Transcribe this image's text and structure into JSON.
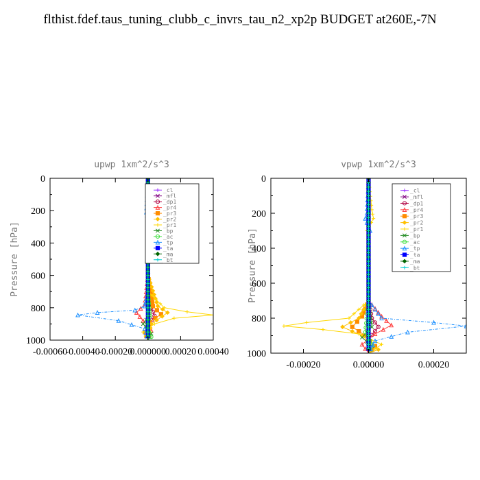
{
  "title": "flthist.fdef.taus_tuning_clubb_c_invrs_tau_n2_xp2p  BUDGET at260E,-7N",
  "chart_data": [
    {
      "type": "line",
      "title": "upwp   1xm^2/s^3",
      "ylabel": "Pressure [hPa]",
      "xlim": [
        -0.0006,
        0.0004
      ],
      "ylim": [
        1000,
        0
      ],
      "xticks": [
        -0.0006,
        -0.0004,
        -0.0002,
        0.0,
        0.0002,
        0.0004
      ],
      "xtick_labels": [
        "-0.00060",
        "-0.00040",
        "-0.00020",
        "0.000000",
        "0.00020",
        "0.00040"
      ],
      "yticks": [
        0,
        200,
        400,
        600,
        800,
        1000
      ],
      "ytick_labels": [
        "0",
        "200",
        "400",
        "600",
        "800",
        "1000"
      ],
      "legend": [
        "_cl",
        "_mfl",
        "_dp1",
        "_pr4",
        "_pr3",
        "_pr2",
        "_pr1",
        "_bp",
        "_ac",
        "_tp",
        "_ta",
        "_ma",
        "_bt"
      ],
      "legend_position": "top-right",
      "series": [
        {
          "name": "_cl",
          "color": "#9b30ff",
          "x": [
            0,
            0,
            0,
            0,
            0,
            0,
            0,
            0,
            0,
            0
          ],
          "y": [
            0,
            100,
            200,
            300,
            400,
            500,
            600,
            700,
            800,
            1000
          ]
        },
        {
          "name": "_mfl",
          "color": "#800080",
          "x": [
            0,
            0,
            0,
            0,
            0,
            0,
            0,
            0,
            0,
            0
          ],
          "y": [
            0,
            100,
            200,
            300,
            400,
            500,
            600,
            700,
            800,
            1000
          ]
        },
        {
          "name": "_dp1",
          "color": "#b00040",
          "x": [
            0,
            0,
            0,
            0,
            2e-05,
            4e-05,
            1e-05,
            0,
            0
          ],
          "y": [
            0,
            200,
            400,
            700,
            800,
            850,
            900,
            950,
            1000
          ]
        },
        {
          "name": "_pr4",
          "color": "#ff4040",
          "x": [
            0,
            0,
            0,
            -2e-05,
            -7e-05,
            -3e-05,
            2e-05,
            0
          ],
          "y": [
            0,
            300,
            600,
            780,
            830,
            880,
            940,
            1000
          ]
        },
        {
          "name": "_pr3",
          "color": "#ff8c00",
          "x": [
            0,
            0,
            0,
            3e-05,
            8e-05,
            1e-05,
            -2e-05,
            0
          ],
          "y": [
            0,
            300,
            600,
            790,
            840,
            890,
            950,
            1000
          ]
        },
        {
          "name": "_pr2",
          "color": "#ffc000",
          "x": [
            0,
            0,
            0,
            6e-05,
            0.00012,
            2e-05,
            0
          ],
          "y": [
            0,
            300,
            600,
            790,
            830,
            900,
            1000
          ]
        },
        {
          "name": "_pr1",
          "color": "#ffd700",
          "x": [
            0,
            -5e-06,
            0,
            0,
            0.0001,
            0.00024,
            0.0004,
            0.00016,
            4e-05,
            -3e-05,
            0
          ],
          "y": [
            0,
            220,
            300,
            700,
            800,
            825,
            845,
            865,
            900,
            950,
            1000
          ]
        },
        {
          "name": "_bp",
          "color": "#228b22",
          "x": [
            0,
            0,
            0,
            1e-05,
            -3e-05,
            2e-05,
            0
          ],
          "y": [
            0,
            300,
            700,
            850,
            900,
            960,
            1000
          ]
        },
        {
          "name": "_ac",
          "color": "#40e040",
          "x": [
            0,
            0,
            0,
            1e-05,
            -1e-05,
            2e-05,
            0
          ],
          "y": [
            0,
            300,
            700,
            850,
            920,
            980,
            1000
          ]
        },
        {
          "name": "_tp",
          "color": "#1e90ff",
          "x": [
            0,
            -1e-05,
            -5e-06,
            0,
            0,
            -2e-05,
            -8e-05,
            -0.00031,
            -0.00043,
            -0.00018,
            -2e-05,
            0
          ],
          "y": [
            0,
            210,
            230,
            300,
            700,
            790,
            815,
            830,
            845,
            880,
            930,
            1000
          ]
        },
        {
          "name": "_ta",
          "color": "#0000ff",
          "x": [
            0,
            0,
            0,
            0,
            0
          ],
          "y": [
            0,
            300,
            600,
            900,
            1000
          ]
        },
        {
          "name": "_ma",
          "color": "#006400",
          "x": [
            0,
            0,
            0,
            0,
            0
          ],
          "y": [
            0,
            300,
            600,
            900,
            1000
          ]
        },
        {
          "name": "_bt",
          "color": "#00ced1",
          "x": [
            0,
            0,
            0,
            0,
            0
          ],
          "y": [
            0,
            300,
            600,
            900,
            1000
          ]
        }
      ]
    },
    {
      "type": "line",
      "title": "vpwp   1xm^2/s^3",
      "ylabel": "Pressure [hPa]",
      "xlim": [
        -0.0003,
        0.0003
      ],
      "ylim": [
        1000,
        0
      ],
      "xticks": [
        -0.0002,
        0.0,
        0.0002
      ],
      "xtick_labels": [
        "-0.00020",
        "0.00000",
        "0.00020"
      ],
      "yticks": [
        0,
        200,
        400,
        600,
        800,
        1000
      ],
      "ytick_labels": [
        "0",
        "200",
        "400",
        "600",
        "800",
        "1000"
      ],
      "legend": [
        "_cl",
        "_mfl",
        "_dp1",
        "_pr4",
        "_pr3",
        "_pr2",
        "_pr1",
        "_bp",
        "_ac",
        "_tp",
        "_ta",
        "_ma",
        "_bt"
      ],
      "legend_position": "top-right",
      "series": [
        {
          "name": "_cl",
          "color": "#9b30ff",
          "x": [
            0,
            0,
            0,
            0,
            0,
            0,
            0,
            0,
            0,
            0
          ],
          "y": [
            0,
            100,
            200,
            300,
            400,
            500,
            600,
            700,
            800,
            1000
          ]
        },
        {
          "name": "_mfl",
          "color": "#800080",
          "x": [
            0,
            0,
            0,
            0,
            0,
            0,
            0,
            0,
            0,
            0
          ],
          "y": [
            0,
            100,
            200,
            300,
            400,
            500,
            600,
            700,
            800,
            1000
          ]
        },
        {
          "name": "_dp1",
          "color": "#b00040",
          "x": [
            0,
            0,
            0,
            1e-05,
            3e-05,
            0,
            0
          ],
          "y": [
            0,
            300,
            700,
            800,
            850,
            920,
            1000
          ]
        },
        {
          "name": "_pr4",
          "color": "#ff4040",
          "x": [
            0,
            0,
            0,
            4e-05,
            7e-05,
            2e-05,
            -2e-05,
            0
          ],
          "y": [
            0,
            300,
            700,
            790,
            840,
            890,
            950,
            1000
          ]
        },
        {
          "name": "_pr3",
          "color": "#ff8c00",
          "x": [
            0,
            0,
            0,
            -2e-05,
            -5e-05,
            -1e-05,
            2e-05,
            0
          ],
          "y": [
            0,
            300,
            700,
            790,
            850,
            900,
            960,
            1000
          ]
        },
        {
          "name": "_pr2",
          "color": "#ffc000",
          "x": [
            0,
            0,
            0,
            -3e-05,
            -8e-05,
            -2e-05,
            3e-05,
            0
          ],
          "y": [
            0,
            300,
            700,
            800,
            850,
            900,
            980,
            1000
          ]
        },
        {
          "name": "_pr1",
          "color": "#ffd700",
          "x": [
            0,
            1e-05,
            1.5e-05,
            -5e-06,
            0,
            0,
            -6e-05,
            -0.00019,
            -0.00026,
            -0.00014,
            -3e-05,
            4e-05,
            0
          ],
          "y": [
            0,
            180,
            230,
            300,
            320,
            700,
            800,
            825,
            845,
            865,
            890,
            950,
            1000
          ]
        },
        {
          "name": "_bp",
          "color": "#228b22",
          "x": [
            0,
            0,
            0,
            1e-05,
            -2e-05,
            1e-05,
            0
          ],
          "y": [
            0,
            300,
            700,
            850,
            910,
            960,
            1000
          ]
        },
        {
          "name": "_ac",
          "color": "#40e040",
          "x": [
            0,
            0,
            0,
            -1e-05,
            1e-05,
            0
          ],
          "y": [
            0,
            300,
            700,
            880,
            950,
            1000
          ]
        },
        {
          "name": "_tp",
          "color": "#1e90ff",
          "x": [
            0,
            -5e-06,
            -1e-05,
            5e-06,
            0,
            0,
            4e-05,
            0.0002,
            0.0003,
            0.00012,
            2e-05,
            0
          ],
          "y": [
            0,
            200,
            230,
            300,
            330,
            700,
            800,
            825,
            845,
            880,
            930,
            1000
          ]
        },
        {
          "name": "_ta",
          "color": "#0000ff",
          "x": [
            0,
            0,
            0,
            0,
            0
          ],
          "y": [
            0,
            300,
            600,
            900,
            1000
          ]
        },
        {
          "name": "_ma",
          "color": "#006400",
          "x": [
            0,
            0,
            0,
            0,
            0
          ],
          "y": [
            0,
            300,
            600,
            900,
            1000
          ]
        },
        {
          "name": "_bt",
          "color": "#00ced1",
          "x": [
            0,
            0,
            0,
            0,
            0
          ],
          "y": [
            0,
            300,
            600,
            900,
            1000
          ]
        }
      ]
    }
  ]
}
